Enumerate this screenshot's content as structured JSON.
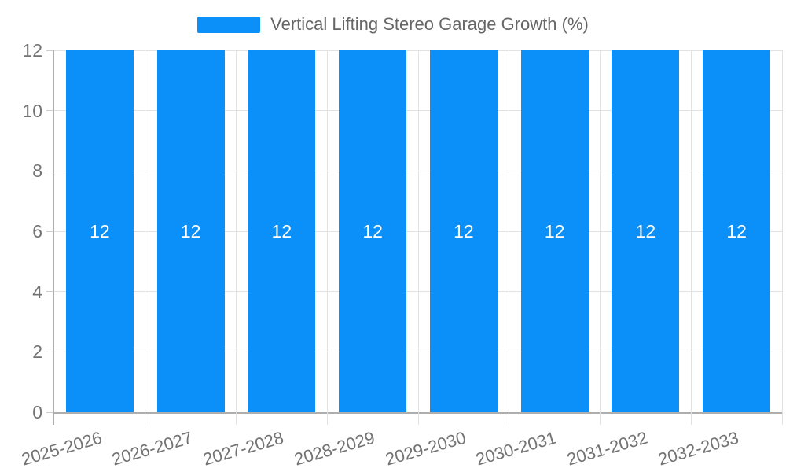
{
  "chart": {
    "colors": {
      "bar": "#0a90f8",
      "bar_label": "#ffffff",
      "grid": "#e2e2e2",
      "axis_line": "#aeaeae",
      "axis_label": "#737373",
      "legend_text": "#666666",
      "background": "#ffffff"
    }
  },
  "chart_data": {
    "type": "bar",
    "title": "Vertical Lifting Stereo Garage Growth (%)",
    "categories": [
      "2025-2026",
      "2026-2027",
      "2027-2028",
      "2028-2029",
      "2029-2030",
      "2030-2031",
      "2031-2032",
      "2032-2033"
    ],
    "values": [
      12,
      12,
      12,
      12,
      12,
      12,
      12,
      12
    ],
    "bar_labels": [
      "12",
      "12",
      "12",
      "12",
      "12",
      "12",
      "12",
      "12"
    ],
    "xlabel": "",
    "ylabel": "",
    "ylim": [
      0,
      12
    ],
    "yticks": [
      0,
      2,
      4,
      6,
      8,
      10,
      12
    ],
    "grid": true,
    "legend_position": "top-center",
    "x_label_rotation_deg": -16
  }
}
